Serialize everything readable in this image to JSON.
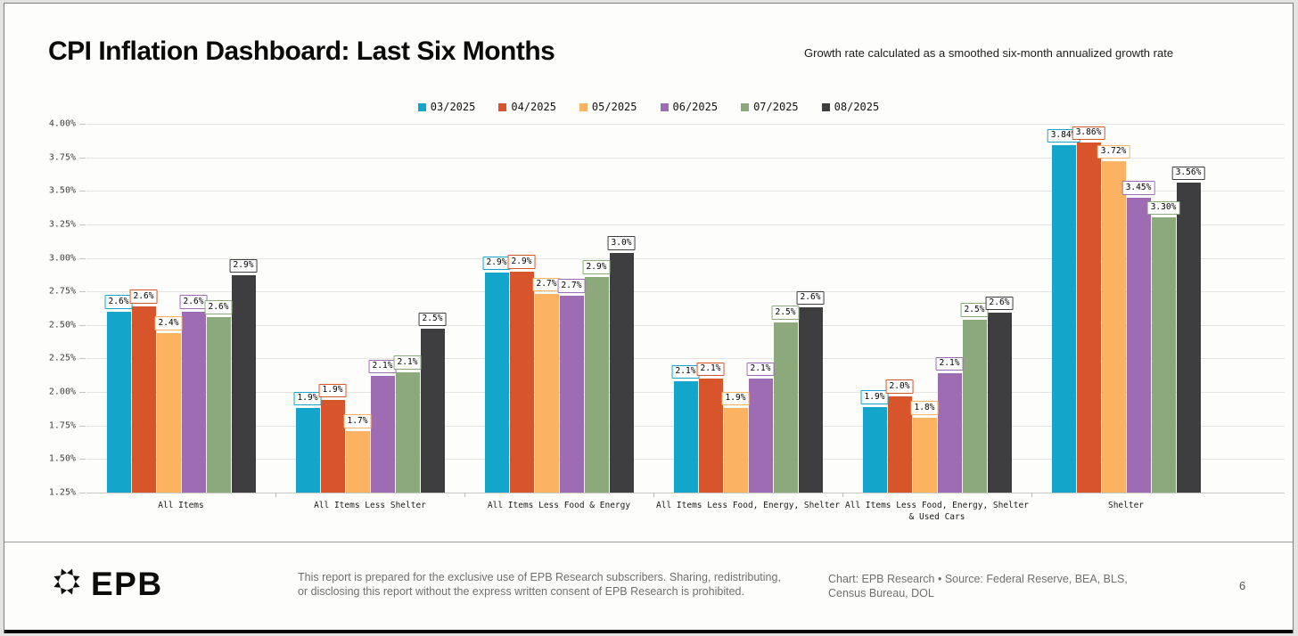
{
  "page": {
    "title": "CPI Inflation Dashboard: Last Six Months",
    "subtitle": "Growth rate calculated as a smoothed six-month annualized growth rate",
    "page_number": "6"
  },
  "footer": {
    "logo_text": "EPB",
    "disclaimer": "This report is prepared for the exclusive use of EPB Research subscribers. Sharing, redistributing, or disclosing this report without the express written consent of EPB Research is prohibited.",
    "source": "Chart: EPB Research  •  Source: Federal Reserve, BEA, BLS, Census Bureau, DOL"
  },
  "chart_data": {
    "type": "bar",
    "title": "CPI Inflation Dashboard: Last Six Months",
    "subtitle": "Growth rate calculated as a smoothed six-month annualized growth rate",
    "grid": true,
    "legend_position": "top-center",
    "ylim": [
      1.25,
      4.0
    ],
    "ytick_labels": [
      "4.00%",
      "3.75%",
      "3.50%",
      "3.25%",
      "3.00%",
      "2.75%",
      "2.50%",
      "2.25%",
      "2.00%",
      "1.75%",
      "1.50%",
      "1.25%"
    ],
    "categories": [
      "All Items",
      "All Items Less Shelter",
      "All Items Less Food & Energy",
      "All Items Less Food, Energy, Shelter",
      "All Items Less Food, Energy, Shelter & Used Cars",
      "Shelter"
    ],
    "series": [
      {
        "name": "03/2025",
        "color": "#14A6CA",
        "values": [
          2.6,
          1.88,
          2.89,
          2.08,
          1.89,
          3.84
        ],
        "labels": [
          "2.6%",
          "1.9%",
          "2.9%",
          "2.1%",
          "1.9%",
          "3.84%"
        ]
      },
      {
        "name": "04/2025",
        "color": "#D8542B",
        "values": [
          2.64,
          1.94,
          2.9,
          2.1,
          1.97,
          3.86
        ],
        "labels": [
          "2.6%",
          "1.9%",
          "2.9%",
          "2.1%",
          "2.0%",
          "3.86%"
        ]
      },
      {
        "name": "05/2025",
        "color": "#FBB361",
        "values": [
          2.44,
          1.71,
          2.73,
          1.88,
          1.81,
          3.72
        ],
        "labels": [
          "2.4%",
          "1.7%",
          "2.7%",
          "1.9%",
          "1.8%",
          "3.72%"
        ]
      },
      {
        "name": "06/2025",
        "color": "#9E6CB3",
        "values": [
          2.6,
          2.12,
          2.72,
          2.1,
          2.14,
          3.45
        ],
        "labels": [
          "2.6%",
          "2.1%",
          "2.7%",
          "2.1%",
          "2.1%",
          "3.45%"
        ]
      },
      {
        "name": "07/2025",
        "color": "#8BA97B",
        "values": [
          2.56,
          2.15,
          2.86,
          2.52,
          2.54,
          3.3
        ],
        "labels": [
          "2.6%",
          "2.1%",
          "2.9%",
          "2.5%",
          "2.5%",
          "3.30%"
        ]
      },
      {
        "name": "08/2025",
        "color": "#3E3E40",
        "values": [
          2.87,
          2.47,
          3.04,
          2.63,
          2.59,
          3.56
        ],
        "labels": [
          "2.9%",
          "2.5%",
          "3.0%",
          "2.6%",
          "2.6%",
          "3.56%"
        ]
      }
    ]
  }
}
